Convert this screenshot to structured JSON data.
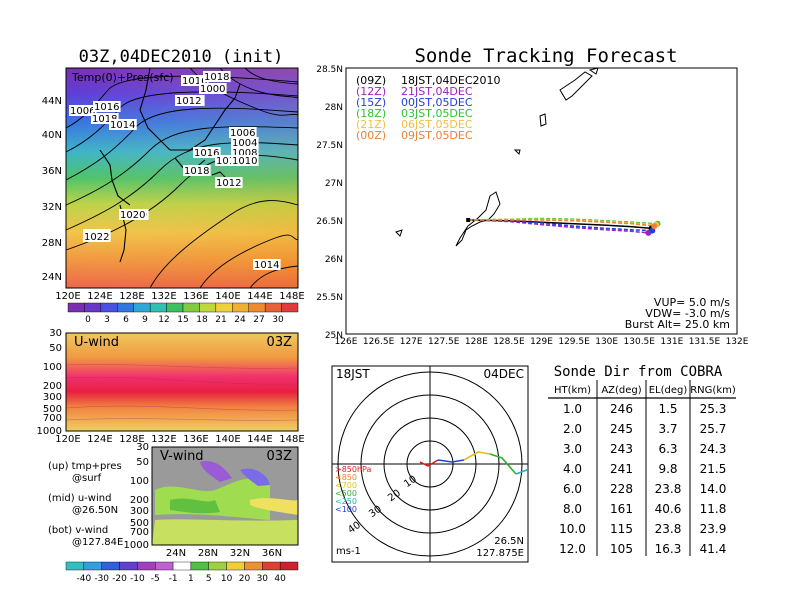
{
  "left_title": "03Z,04DEC2010 (init)",
  "temp_map": {
    "label": "Temp(0)+Pres(sfc)",
    "lat_labels": [
      "44N",
      "40N",
      "36N",
      "32N",
      "28N",
      "24N"
    ],
    "lon_labels": [
      "120E",
      "124E",
      "128E",
      "132E",
      "136E",
      "140E",
      "144E",
      "148E"
    ],
    "pressure_labels": [
      "1012",
      "1016",
      "1018",
      "1012",
      "1014",
      "1012",
      "1006",
      "1014",
      "1000",
      "1016",
      "1018",
      "1014",
      "1020",
      "1022",
      "1006",
      "1004",
      "1008",
      "1016",
      "1014",
      "1010",
      "1018",
      "1012",
      "1020",
      "1022",
      "1014"
    ],
    "colorbar_labels": [
      "0",
      "3",
      "6",
      "9",
      "12",
      "15",
      "18",
      "21",
      "24",
      "27",
      "30"
    ]
  },
  "u_wind": {
    "label": "U-wind",
    "time": "03Z",
    "p_labels": [
      "30",
      "50",
      "100",
      "200",
      "300",
      "500",
      "700",
      "1000"
    ],
    "lon_labels": [
      "120E",
      "124E",
      "128E",
      "132E",
      "136E",
      "140E",
      "144E",
      "148E"
    ]
  },
  "v_wind": {
    "label": "V-wind",
    "time": "03Z",
    "p_labels": [
      "30",
      "50",
      "100",
      "200",
      "300",
      "500",
      "700",
      "1000"
    ],
    "lat_labels": [
      "24N",
      "28N",
      "32N",
      "36N"
    ]
  },
  "panel_notes": {
    "up": "(up) tmp+pres",
    "up2": "@surf",
    "mid": "(mid) u-wind",
    "mid2": "@26.50N",
    "bot": "(bot) v-wind",
    "bot2": "@127.84E"
  },
  "wind_colorbar_labels": [
    "-40",
    "-30",
    "-20",
    "-10",
    "-5",
    "-1",
    "1",
    "5",
    "10",
    "20",
    "30",
    "40"
  ],
  "track": {
    "title": "Sonde Tracking Forecast",
    "lat_labels": [
      "28.5N",
      "28N",
      "27.5N",
      "27N",
      "26.5N",
      "26N",
      "25.5N",
      "25N"
    ],
    "lon_labels": [
      "126E",
      "126.5E",
      "127E",
      "127.5E",
      "128E",
      "128.5E",
      "129E",
      "129.5E",
      "130E",
      "130.5E",
      "131E",
      "131.5E",
      "132E"
    ],
    "legend": [
      {
        "code": "(09Z)",
        "time": "18JST,04DEC2010",
        "color": "#000000"
      },
      {
        "code": "(12Z)",
        "time": "21JST,04DEC",
        "color": "#a020c0"
      },
      {
        "code": "(15Z)",
        "time": "00JST,05DEC",
        "color": "#2040e0"
      },
      {
        "code": "(18Z)",
        "time": "03JST,05DEC",
        "color": "#30c030"
      },
      {
        "code": "(21Z)",
        "time": "06JST,05DEC",
        "color": "#f0c040"
      },
      {
        "code": "(00Z)",
        "time": "09JST,05DEC",
        "color": "#f08030"
      }
    ],
    "params": {
      "vup": "VUP= 5.0 m/s",
      "vdw": "VDW= -3.0 m/s",
      "burst": "Burst Alt= 25.0 km"
    },
    "launch": {
      "lon": 127.875,
      "lat": 26.5
    },
    "endpoints": [
      {
        "lon": 130.69,
        "lat": 26.39,
        "color": "#000000"
      },
      {
        "lon": 130.64,
        "lat": 26.33,
        "color": "#a020c0"
      },
      {
        "lon": 130.7,
        "lat": 26.36,
        "color": "#2040e0"
      },
      {
        "lon": 130.78,
        "lat": 26.45,
        "color": "#30c030"
      },
      {
        "lon": 130.76,
        "lat": 26.44,
        "color": "#f0c040"
      },
      {
        "lon": 130.73,
        "lat": 26.42,
        "color": "#f08030"
      }
    ]
  },
  "polar": {
    "left": "18JST",
    "right": "04DEC",
    "levels": [
      ">850hPa",
      "<850",
      "<700",
      "<500",
      "<250",
      "<100"
    ],
    "level_colors": [
      "#e02020",
      "#f08030",
      "#e0c020",
      "#30b030",
      "#20b0c0",
      "#2040e0"
    ],
    "ring_labels": [
      "10",
      "20",
      "30",
      "40"
    ],
    "units": "ms-1",
    "loc1": "26.5N",
    "loc2": "127.875E"
  },
  "table": {
    "title": "Sonde Dir from COBRA",
    "headers": [
      "HT(km)",
      "AZ(deg)",
      "EL(deg)",
      "RNG(km)"
    ],
    "rows": [
      [
        "1.0",
        "246",
        "1.5",
        "25.3"
      ],
      [
        "2.0",
        "245",
        "3.7",
        "25.7"
      ],
      [
        "3.0",
        "243",
        "6.3",
        "24.3"
      ],
      [
        "4.0",
        "241",
        "9.8",
        "21.5"
      ],
      [
        "6.0",
        "228",
        "23.8",
        "14.0"
      ],
      [
        "8.0",
        "161",
        "40.6",
        "11.8"
      ],
      [
        "10.0",
        "115",
        "23.8",
        "23.9"
      ],
      [
        "12.0",
        "105",
        "16.3",
        "41.4"
      ]
    ]
  },
  "chart_data": [
    {
      "type": "line",
      "title": "Sonde Tracking Forecast",
      "xlim": [
        126,
        132
      ],
      "ylim": [
        25,
        28.5
      ],
      "series": [
        {
          "name": "(09Z) 18JST,04DEC2010",
          "x": [
            127.875,
            128.5,
            129.0,
            129.5,
            130.0,
            130.4,
            130.69
          ],
          "y": [
            26.5,
            26.49,
            26.47,
            26.45,
            26.43,
            26.41,
            26.39
          ]
        },
        {
          "name": "(12Z) 21JST,04DEC",
          "x": [
            127.875,
            128.5,
            129.0,
            129.5,
            130.0,
            130.4,
            130.64
          ],
          "y": [
            26.5,
            26.48,
            26.44,
            26.4,
            26.37,
            26.35,
            26.33
          ]
        },
        {
          "name": "(15Z) 00JST,05DEC",
          "x": [
            127.875,
            128.5,
            129.0,
            129.5,
            130.0,
            130.4,
            130.7
          ],
          "y": [
            26.5,
            26.49,
            26.46,
            26.42,
            26.39,
            26.37,
            26.36
          ]
        },
        {
          "name": "(18Z) 03JST,05DEC",
          "x": [
            127.875,
            128.5,
            129.0,
            129.5,
            130.0,
            130.4,
            130.78
          ],
          "y": [
            26.5,
            26.51,
            26.52,
            26.51,
            26.49,
            26.47,
            26.45
          ]
        },
        {
          "name": "(21Z) 06JST,05DEC",
          "x": [
            127.875,
            128.5,
            129.0,
            129.5,
            130.0,
            130.4,
            130.76
          ],
          "y": [
            26.5,
            26.51,
            26.51,
            26.5,
            26.48,
            26.46,
            26.44
          ]
        },
        {
          "name": "(00Z) 09JST,05DEC",
          "x": [
            127.875,
            128.5,
            129.0,
            129.5,
            130.0,
            130.4,
            130.73
          ],
          "y": [
            26.5,
            26.5,
            26.5,
            26.49,
            26.47,
            26.45,
            26.42
          ]
        }
      ]
    },
    {
      "type": "table",
      "title": "Sonde Dir from COBRA",
      "columns": [
        "HT(km)",
        "AZ(deg)",
        "EL(deg)",
        "RNG(km)"
      ],
      "rows": [
        [
          1.0,
          246,
          1.5,
          25.3
        ],
        [
          2.0,
          245,
          3.7,
          25.7
        ],
        [
          3.0,
          243,
          6.3,
          24.3
        ],
        [
          4.0,
          241,
          9.8,
          21.5
        ],
        [
          6.0,
          228,
          23.8,
          14.0
        ],
        [
          8.0,
          161,
          40.6,
          11.8
        ],
        [
          10.0,
          115,
          23.8,
          23.9
        ],
        [
          12.0,
          105,
          16.3,
          41.4
        ]
      ]
    }
  ]
}
